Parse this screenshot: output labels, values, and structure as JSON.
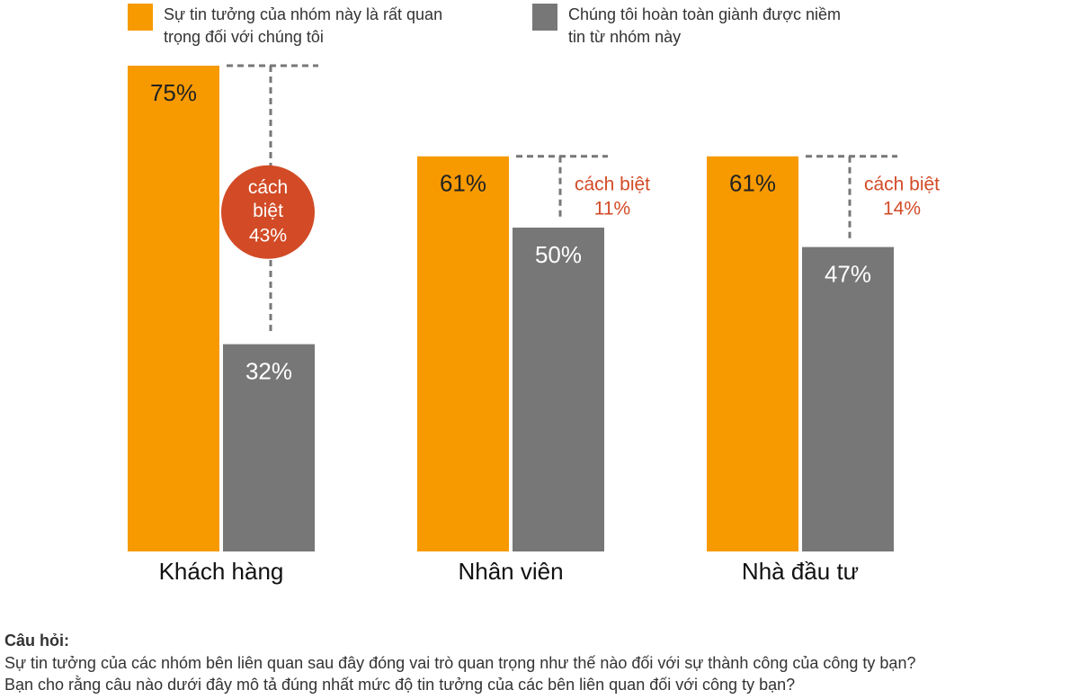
{
  "chart_data": {
    "type": "bar",
    "categories": [
      "Khách hàng",
      "Nhân viên",
      "Nhà đầu tư"
    ],
    "series": [
      {
        "name": "Sự tin tưởng của nhóm này là rất quan trọng đối với chúng tôi",
        "color": "#f79a00",
        "values": [
          75,
          61,
          61
        ],
        "value_labels": [
          "75%",
          "61%",
          "61%"
        ]
      },
      {
        "name": "Chúng tôi hoàn toàn giành được niềm tin từ nhóm này",
        "color": "#777777",
        "values": [
          32,
          50,
          47
        ],
        "value_labels": [
          "32%",
          "50%",
          "47%"
        ]
      }
    ],
    "gaps": {
      "label": "cách biệt",
      "color": "#d24b26",
      "values": [
        43,
        11,
        14
      ],
      "value_labels": [
        "43%",
        "11%",
        "14%"
      ]
    },
    "footnote": {
      "title": "Câu hỏi:",
      "lines": [
        "Sự tin tưởng của các nhóm bên liên quan sau đây đóng vai trò quan trọng như thế nào đối với sự thành công của công ty bạn?",
        "Bạn cho rằng câu nào dưới đây mô tả đúng nhất mức độ tin tưởng của các bên liên quan đối với công ty bạn?"
      ]
    }
  }
}
